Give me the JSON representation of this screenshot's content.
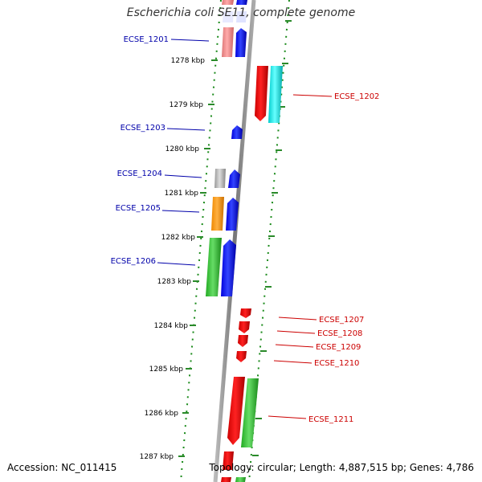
{
  "title": "Escherichia coli SE11, complete genome",
  "accession": "Accession: NC_011415",
  "summary": "Topology: circular; Length: 4,887,515 bp; Genes: 4,786",
  "colors": {
    "backbone": "#888888",
    "grid_dots": "#1a8a1a",
    "tick": "#2a8a2a",
    "left_label": "#0000aa",
    "right_label": "#cc0000"
  },
  "scale_labels": [
    "1278 kbp",
    "1279 kbp",
    "1280 kbp",
    "1281 kbp",
    "1282 kbp",
    "1283 kbp",
    "1284 kbp",
    "1285 kbp",
    "1286 kbp",
    "1287 kbp"
  ],
  "gene_labels_left": [
    "ECSE_1201",
    "ECSE_1203",
    "ECSE_1204",
    "ECSE_1205",
    "ECSE_1206"
  ],
  "gene_labels_right": [
    "ECSE_1202",
    "ECSE_1207",
    "ECSE_1208",
    "ECSE_1209",
    "ECSE_1210",
    "ECSE_1211"
  ]
}
